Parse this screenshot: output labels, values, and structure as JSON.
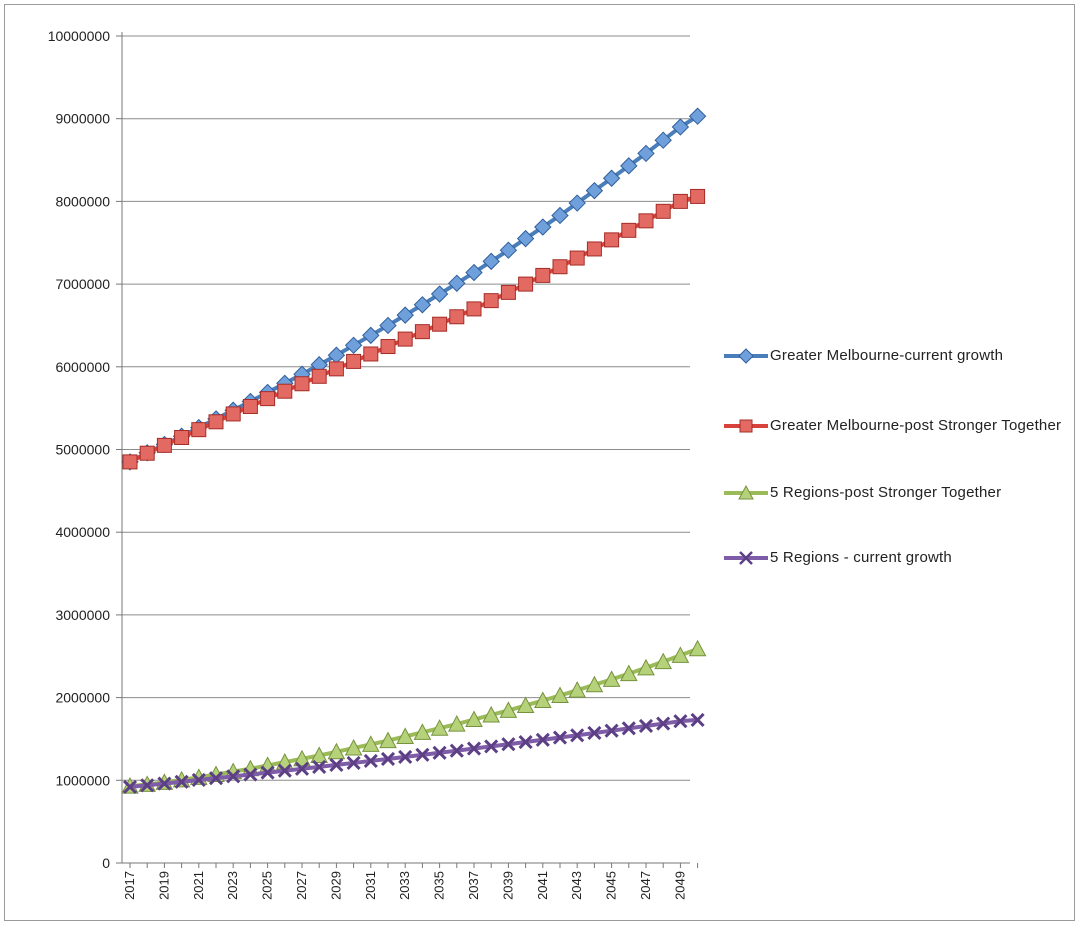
{
  "chart_data": {
    "type": "line",
    "title": "",
    "xlabel": "",
    "ylabel": "",
    "ylim": [
      0,
      10000000
    ],
    "y_ticks": [
      "0",
      "1000000",
      "2000000",
      "3000000",
      "4000000",
      "5000000",
      "6000000",
      "7000000",
      "8000000",
      "9000000",
      "10000000"
    ],
    "x": [
      2017,
      2018,
      2019,
      2020,
      2021,
      2022,
      2023,
      2024,
      2025,
      2026,
      2027,
      2028,
      2029,
      2030,
      2031,
      2032,
      2033,
      2034,
      2035,
      2036,
      2037,
      2038,
      2039,
      2040,
      2041,
      2042,
      2043,
      2044,
      2045,
      2046,
      2047,
      2048,
      2049,
      2050
    ],
    "x_tick_labels": [
      "2017",
      "2019",
      "2021",
      "2023",
      "2025",
      "2027",
      "2029",
      "2031",
      "2033",
      "2035",
      "2037",
      "2039",
      "2041",
      "2043",
      "2045",
      "2047",
      "2049"
    ],
    "grid": "horizontal",
    "legend_position": "right",
    "series": [
      {
        "name": "Greater Melbourne-current growth",
        "color": "#4a7ebb",
        "marker": "diamond",
        "values": [
          4850000,
          4960000,
          5060000,
          5160000,
          5265000,
          5370000,
          5475000,
          5580000,
          5690000,
          5800000,
          5910000,
          6025000,
          6140000,
          6260000,
          6380000,
          6500000,
          6625000,
          6750000,
          6880000,
          7010000,
          7140000,
          7275000,
          7410000,
          7550000,
          7690000,
          7830000,
          7980000,
          8130000,
          8280000,
          8430000,
          8580000,
          8740000,
          8900000,
          9030000
        ]
      },
      {
        "name": "Greater Melbourne-post Stronger Together",
        "color": "#d9413b",
        "marker": "square",
        "values": [
          4850000,
          4955000,
          5050000,
          5145000,
          5240000,
          5335000,
          5430000,
          5520000,
          5615000,
          5705000,
          5795000,
          5885000,
          5975000,
          6065000,
          6155000,
          6245000,
          6335000,
          6425000,
          6515000,
          6605000,
          6700000,
          6800000,
          6900000,
          7000000,
          7105000,
          7210000,
          7315000,
          7425000,
          7535000,
          7650000,
          7765000,
          7880000,
          8000000,
          8060000
        ]
      },
      {
        "name": "5 Regions-post Stronger Together",
        "color": "#9bbb59",
        "marker": "triangle",
        "values": [
          930000,
          950000,
          975000,
          1005000,
          1035000,
          1070000,
          1105000,
          1140000,
          1180000,
          1220000,
          1260000,
          1300000,
          1345000,
          1390000,
          1435000,
          1480000,
          1530000,
          1580000,
          1630000,
          1680000,
          1735000,
          1790000,
          1845000,
          1905000,
          1965000,
          2025000,
          2090000,
          2155000,
          2220000,
          2290000,
          2360000,
          2435000,
          2510000,
          2590000
        ]
      },
      {
        "name": "5 Regions - current growth",
        "color": "#7e5ca8",
        "marker": "x",
        "values": [
          920000,
          940000,
          960000,
          982000,
          1004000,
          1026000,
          1048000,
          1070000,
          1093000,
          1116000,
          1139000,
          1162000,
          1186000,
          1210000,
          1234000,
          1258000,
          1283000,
          1308000,
          1333000,
          1358000,
          1384000,
          1410000,
          1436000,
          1463000,
          1490000,
          1517000,
          1544000,
          1572000,
          1600000,
          1628000,
          1657000,
          1686000,
          1715000,
          1730000
        ]
      }
    ]
  }
}
